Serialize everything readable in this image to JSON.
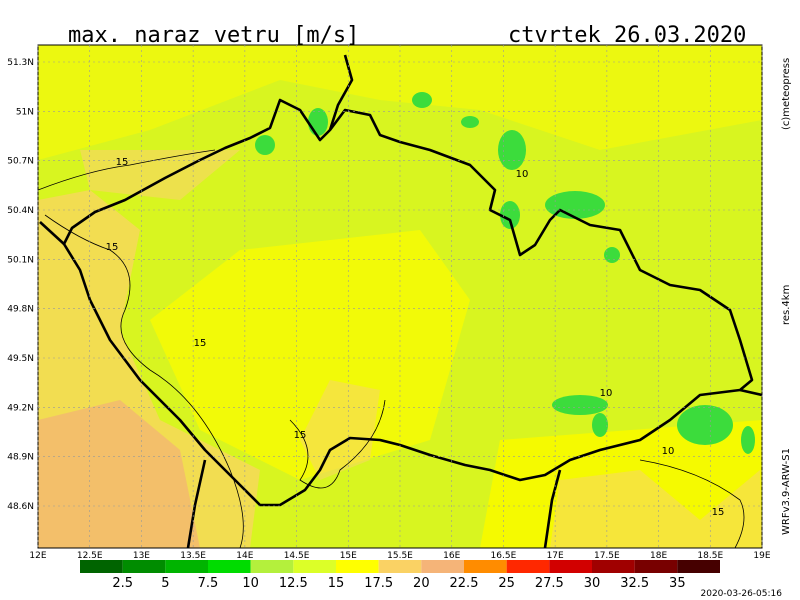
{
  "header": {
    "title": "max. naraz vetru [m/s]",
    "date": "ctvrtek 26.03.2020"
  },
  "map": {
    "lon_ticks": [
      "12E",
      "12.5E",
      "13E",
      "13.5E",
      "14E",
      "14.5E",
      "15E",
      "15.5E",
      "16E",
      "16.5E",
      "17E",
      "17.5E",
      "18E",
      "18.5E",
      "19E"
    ],
    "lat_ticks": [
      "51.3N",
      "51N",
      "50.7N",
      "50.4N",
      "50.1N",
      "49.8N",
      "49.5N",
      "49.2N",
      "48.9N",
      "48.6N"
    ],
    "contour_labels": [
      "15",
      "15",
      "15",
      "15",
      "10",
      "10",
      "10",
      "15"
    ]
  },
  "legend": {
    "labels": [
      "2.5",
      "5",
      "7.5",
      "10",
      "12.5",
      "15",
      "17.5",
      "20",
      "22.5",
      "25",
      "27.5",
      "30",
      "32.5",
      "35"
    ],
    "colors": [
      "#006400",
      "#008c00",
      "#00b400",
      "#00dc00",
      "#b4f03c",
      "#dcff28",
      "#ffff00",
      "#fad264",
      "#f5b478",
      "#ff8c00",
      "#ff2800",
      "#d20000",
      "#a00000",
      "#780000",
      "#460000"
    ]
  },
  "side": {
    "credit": "(c)meteopress",
    "resolution": "res.4km",
    "model": "WRFv3.9-ARW-S1",
    "timestamp": "2020-03-26-05:16"
  }
}
